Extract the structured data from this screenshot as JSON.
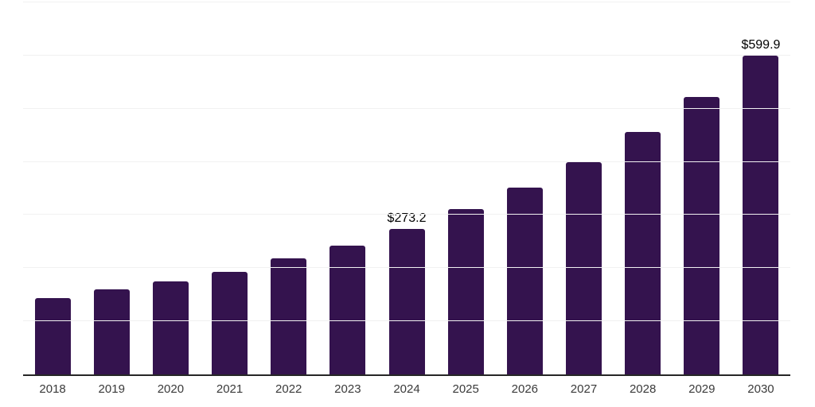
{
  "chart_data": {
    "type": "bar",
    "title": "",
    "xlabel": "",
    "ylabel": "",
    "categories": [
      "2018",
      "2019",
      "2020",
      "2021",
      "2022",
      "2023",
      "2024",
      "2025",
      "2026",
      "2027",
      "2028",
      "2029",
      "2030"
    ],
    "values": [
      143.5,
      159.5,
      175.0,
      193.4,
      218.4,
      242.6,
      273.2,
      310.6,
      352.0,
      400.0,
      456.0,
      522.7,
      599.9
    ],
    "bar_labels": [
      "",
      "",
      "",
      "",
      "",
      "",
      "$273.2",
      "",
      "",
      "",
      "",
      "",
      "$599.9"
    ],
    "ylim": [
      0,
      700
    ],
    "gridline_values": [
      100,
      200,
      300,
      400,
      500,
      600,
      700
    ],
    "grid": "horizontal",
    "legend": "none",
    "y_tick_labels_visible": false,
    "colors": {
      "bar": "#34134E",
      "gridline": "#F1F1F1",
      "axis": "#262626",
      "tick_label": "#3A3A3A",
      "value_label": "#000000",
      "background": "#FFFFFF"
    }
  }
}
